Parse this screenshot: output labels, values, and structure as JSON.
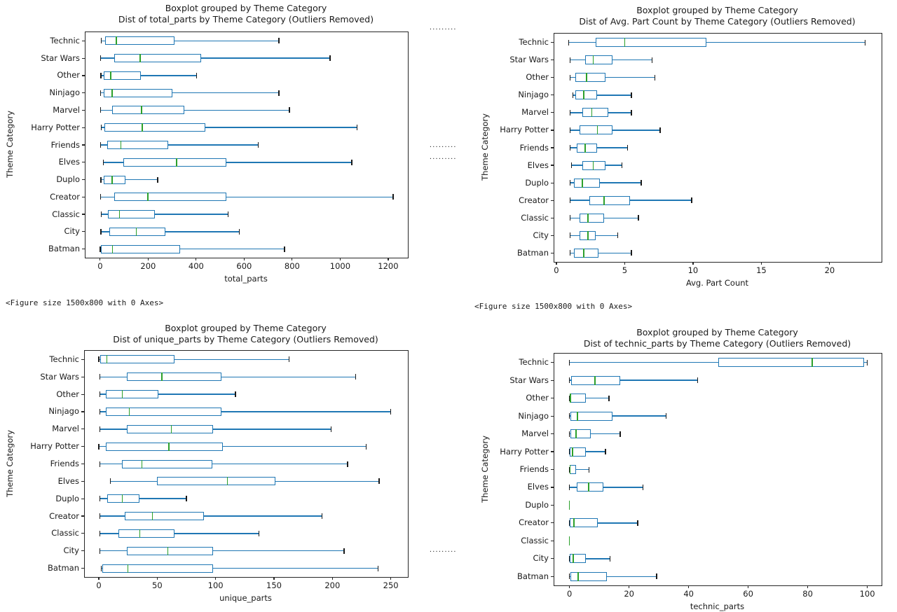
{
  "colors": {
    "box": "#1f77b4",
    "median": "#2ca02c",
    "cap": "#1a1a1a",
    "axes_edge": "#262626",
    "text": "#1a1a1a",
    "background": "#ffffff"
  },
  "figure_size_outputs": [
    {
      "text": "<Figure size 1500x800 with 0 Axes>"
    },
    {
      "text": "<Figure size 1500x800 with 0 Axes>"
    }
  ],
  "ellipsis_marks": [
    {
      "text": "........."
    },
    {
      "text": "........."
    },
    {
      "text": "........."
    },
    {
      "text": "........."
    }
  ],
  "chart_data": [
    {
      "type": "boxplot",
      "orientation": "horizontal",
      "title": "Boxplot grouped by Theme Category",
      "subtitle": "Dist of total_parts by Theme Category (Outliers Removed)",
      "xlabel": "total_parts",
      "ylabel": "Theme Category",
      "grid": false,
      "xticks": [
        0,
        200,
        400,
        600,
        800,
        1000,
        1200
      ],
      "xlim": [
        -61,
        1282
      ],
      "categories": [
        "Technic",
        "Star Wars",
        "Other",
        "Ninjago",
        "Marvel",
        "Harry Potter",
        "Friends",
        "Elves",
        "Duplo",
        "Creator",
        "Classic",
        "City",
        "Batman"
      ],
      "boxes": [
        {
          "min": 5,
          "q1": 20,
          "median": 68,
          "q3": 310,
          "max": 745
        },
        {
          "min": 2,
          "q1": 58,
          "median": 166,
          "q3": 422,
          "max": 958
        },
        {
          "min": 3,
          "q1": 14,
          "median": 44,
          "q3": 169,
          "max": 402
        },
        {
          "min": 2,
          "q1": 14,
          "median": 50,
          "q3": 300,
          "max": 745
        },
        {
          "min": 2,
          "q1": 50,
          "median": 172,
          "q3": 352,
          "max": 789
        },
        {
          "min": 5,
          "q1": 17,
          "median": 175,
          "q3": 437,
          "max": 1071
        },
        {
          "min": 2,
          "q1": 30,
          "median": 86,
          "q3": 283,
          "max": 658
        },
        {
          "min": 14,
          "q1": 98,
          "median": 318,
          "q3": 527,
          "max": 1049
        },
        {
          "min": 3,
          "q1": 14,
          "median": 50,
          "q3": 104,
          "max": 239
        },
        {
          "min": 2,
          "q1": 60,
          "median": 199,
          "q3": 527,
          "max": 1220
        },
        {
          "min": 5,
          "q1": 32,
          "median": 80,
          "q3": 229,
          "max": 533
        },
        {
          "min": 3,
          "q1": 38,
          "median": 151,
          "q3": 271,
          "max": 580
        },
        {
          "min": 1,
          "q1": 3,
          "median": 52,
          "q3": 334,
          "max": 768
        }
      ]
    },
    {
      "type": "boxplot",
      "orientation": "horizontal",
      "title": "Boxplot grouped by Theme Category",
      "subtitle": "Dist of Avg. Part Count by Theme Category (Outliers Removed)",
      "xlabel": "Avg. Part Count",
      "ylabel": "Theme Category",
      "grid": false,
      "xticks": [
        0,
        5,
        10,
        15,
        20
      ],
      "xlim": [
        -0.15,
        23.8
      ],
      "categories": [
        "Technic",
        "Star Wars",
        "Other",
        "Ninjago",
        "Marvel",
        "Harry Potter",
        "Friends",
        "Elves",
        "Duplo",
        "Creator",
        "Classic",
        "City",
        "Batman"
      ],
      "boxes": [
        {
          "min": 0.9,
          "q1": 2.9,
          "median": 5.0,
          "q3": 11.0,
          "max": 22.6
        },
        {
          "min": 1.0,
          "q1": 2.1,
          "median": 2.7,
          "q3": 4.1,
          "max": 7.0
        },
        {
          "min": 1.0,
          "q1": 1.4,
          "median": 2.2,
          "q3": 3.6,
          "max": 7.2
        },
        {
          "min": 1.2,
          "q1": 1.4,
          "median": 2.0,
          "q3": 3.0,
          "max": 5.5
        },
        {
          "min": 1.0,
          "q1": 1.9,
          "median": 2.6,
          "q3": 3.8,
          "max": 5.5
        },
        {
          "min": 1.0,
          "q1": 1.7,
          "median": 3.0,
          "q3": 4.1,
          "max": 7.6
        },
        {
          "min": 1.0,
          "q1": 1.5,
          "median": 2.1,
          "q3": 3.0,
          "max": 5.2
        },
        {
          "min": 1.1,
          "q1": 1.9,
          "median": 2.7,
          "q3": 3.6,
          "max": 4.8
        },
        {
          "min": 1.0,
          "q1": 1.3,
          "median": 1.9,
          "q3": 3.2,
          "max": 6.2
        },
        {
          "min": 1.0,
          "q1": 2.4,
          "median": 3.5,
          "q3": 5.4,
          "max": 9.9
        },
        {
          "min": 1.0,
          "q1": 1.7,
          "median": 2.3,
          "q3": 3.5,
          "max": 6.0
        },
        {
          "min": 1.0,
          "q1": 1.7,
          "median": 2.3,
          "q3": 2.9,
          "max": 4.5
        },
        {
          "min": 1.0,
          "q1": 1.3,
          "median": 2.0,
          "q3": 3.1,
          "max": 5.5
        }
      ]
    },
    {
      "type": "boxplot",
      "orientation": "horizontal",
      "title": "Boxplot grouped by Theme Category",
      "subtitle": "Dist of unique_parts by Theme Category (Outliers Removed)",
      "xlabel": "unique_parts",
      "ylabel": "Theme Category",
      "grid": false,
      "xticks": [
        0,
        50,
        100,
        150,
        200,
        250
      ],
      "xlim": [
        -12,
        264.6
      ],
      "categories": [
        "Technic",
        "Star Wars",
        "Other",
        "Ninjago",
        "Marvel",
        "Harry Potter",
        "Friends",
        "Elves",
        "Duplo",
        "Creator",
        "Classic",
        "City",
        "Batman"
      ],
      "boxes": [
        {
          "min": 0,
          "q1": 1,
          "median": 7,
          "q3": 65,
          "max": 163
        },
        {
          "min": 1,
          "q1": 24,
          "median": 54,
          "q3": 105,
          "max": 220
        },
        {
          "min": 1,
          "q1": 6,
          "median": 20,
          "q3": 51,
          "max": 117
        },
        {
          "min": 1,
          "q1": 6,
          "median": 26,
          "q3": 105,
          "max": 250
        },
        {
          "min": 1,
          "q1": 24,
          "median": 62,
          "q3": 98,
          "max": 199
        },
        {
          "min": 0,
          "q1": 6,
          "median": 60,
          "q3": 106,
          "max": 229
        },
        {
          "min": 1,
          "q1": 20,
          "median": 37,
          "q3": 97,
          "max": 213
        },
        {
          "min": 10,
          "q1": 50,
          "median": 110,
          "q3": 151,
          "max": 240
        },
        {
          "min": 1,
          "q1": 7,
          "median": 20,
          "q3": 35,
          "max": 75
        },
        {
          "min": 1,
          "q1": 22,
          "median": 46,
          "q3": 90,
          "max": 191
        },
        {
          "min": 1,
          "q1": 17,
          "median": 35,
          "q3": 65,
          "max": 137
        },
        {
          "min": 1,
          "q1": 24,
          "median": 59,
          "q3": 98,
          "max": 210
        },
        {
          "min": 2,
          "q1": 3,
          "median": 25,
          "q3": 98,
          "max": 239
        }
      ]
    },
    {
      "type": "boxplot",
      "orientation": "horizontal",
      "title": "Boxplot grouped by Theme Category",
      "subtitle": "Dist of technic_parts by Theme Category (Outliers Removed)",
      "xlabel": "technic_parts",
      "ylabel": "Theme Category",
      "grid": false,
      "xticks": [
        0,
        20,
        40,
        60,
        80,
        100
      ],
      "xlim": [
        -5.1,
        104.8
      ],
      "categories": [
        "Technic",
        "Star Wars",
        "Other",
        "Ninjago",
        "Marvel",
        "Harry Potter",
        "Friends",
        "Elves",
        "Duplo",
        "Creator",
        "Classic",
        "City",
        "Batman"
      ],
      "boxes": [
        {
          "min": 0,
          "q1": 50,
          "median": 81.5,
          "q3": 99,
          "max": 100
        },
        {
          "min": 0,
          "q1": 0.5,
          "median": 8.5,
          "q3": 17,
          "max": 43
        },
        {
          "min": 0,
          "q1": 0,
          "median": 0.3,
          "q3": 5.4,
          "max": 13.3
        },
        {
          "min": 0,
          "q1": 0.2,
          "median": 2.7,
          "q3": 14.5,
          "max": 32.4
        },
        {
          "min": 0,
          "q1": 0.2,
          "median": 2.2,
          "q3": 7.2,
          "max": 17
        },
        {
          "min": 0,
          "q1": 0,
          "median": 1.0,
          "q3": 5.4,
          "max": 12.1
        },
        {
          "min": 0,
          "q1": 0,
          "median": 0.2,
          "q3": 2.2,
          "max": 6.6
        },
        {
          "min": 0,
          "q1": 2.5,
          "median": 6.4,
          "q3": 11.4,
          "max": 24.7
        },
        {
          "min": 0,
          "q1": 0,
          "median": 0,
          "q3": 0,
          "max": 0
        },
        {
          "min": 0,
          "q1": 0,
          "median": 1.5,
          "q3": 9.6,
          "max": 22.9
        },
        {
          "min": 0,
          "q1": 0,
          "median": 0,
          "q3": 0,
          "max": 0
        },
        {
          "min": 0,
          "q1": 0,
          "median": 1.3,
          "q3": 5.6,
          "max": 13.6
        },
        {
          "min": 0,
          "q1": 0.3,
          "median": 2.9,
          "q3": 12.6,
          "max": 29.2
        }
      ]
    }
  ]
}
